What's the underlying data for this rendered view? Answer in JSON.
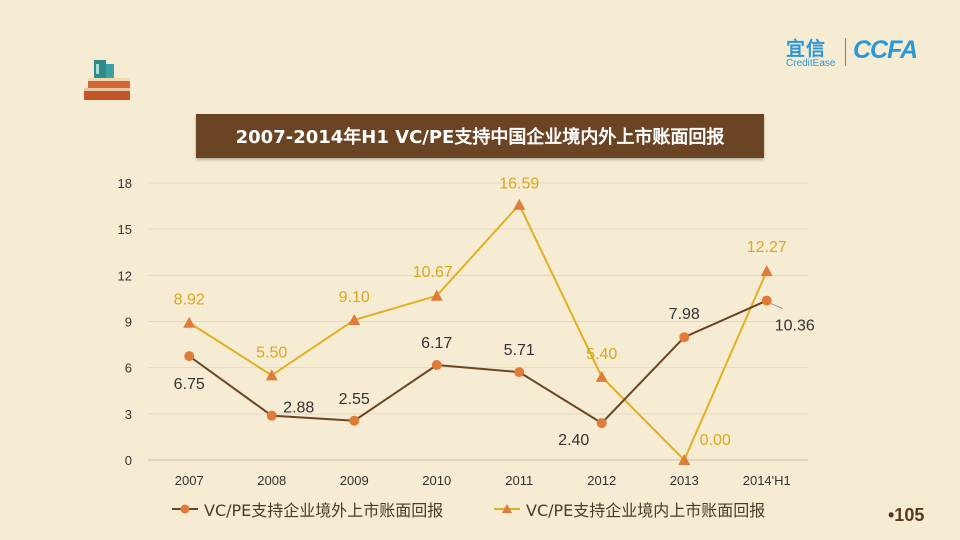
{
  "title": "2007-2014年H1 VC/PE支持中国企业境内外上市账面回报",
  "brand": {
    "cn": "宜信",
    "en": "CreditEase",
    "ccfa": "CCFA"
  },
  "page_number": "•105",
  "colors": {
    "series_outside": "#e07b39",
    "line_outside": "#6b4423",
    "series_inside": "#e0b020",
    "label_inside": "#d9a81c",
    "label_outside": "#333333",
    "title_bg": "#6b4423",
    "background": "#f6ecd4"
  },
  "chart_data": {
    "type": "line",
    "categories": [
      "2007",
      "2008",
      "2009",
      "2010",
      "2011",
      "2012",
      "2013",
      "2014'H1"
    ],
    "series": [
      {
        "name": "VC/PE支持企业境外上市账面回报",
        "values": [
          6.75,
          2.88,
          2.55,
          6.17,
          5.71,
          2.4,
          7.98,
          10.36
        ],
        "labels": [
          "6.75",
          "2.88",
          "2.55",
          "6.17",
          "5.71",
          "2.40",
          "7.98",
          "10.36"
        ]
      },
      {
        "name": "VC/PE支持企业境内上市账面回报",
        "values": [
          8.92,
          5.5,
          9.1,
          10.67,
          16.59,
          5.4,
          0.0,
          12.27
        ],
        "labels": [
          "8.92",
          "5.50",
          "9.10",
          "10.67",
          "16.59",
          "5.40",
          "0.00",
          "12.27"
        ]
      }
    ],
    "yticks": [
      "18",
      "15",
      "12",
      "9",
      "6",
      "3",
      "0"
    ],
    "ylim": [
      0,
      18
    ],
    "grid": true,
    "legend": "bottom"
  }
}
